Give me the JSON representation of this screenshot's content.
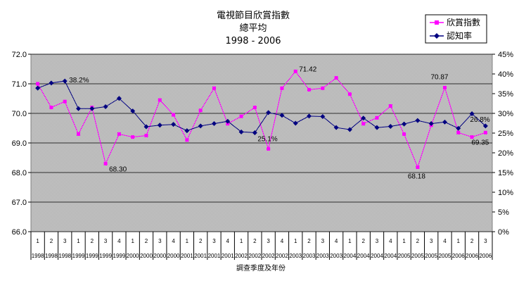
{
  "chart_data": {
    "type": "line",
    "title": [
      "電視節目欣賞指數",
      "總平均",
      "1998 - 2006"
    ],
    "xlabel": "調查季度及年份",
    "ylabel": "",
    "ylim": [
      66.0,
      72.0
    ],
    "y2lim": [
      0,
      45
    ],
    "yticks": [
      "66.0",
      "67.0",
      "68.0",
      "69.0",
      "70.0",
      "71.0",
      "72.0"
    ],
    "y2ticks": [
      "0%",
      "5%",
      "10%",
      "15%",
      "20%",
      "25%",
      "30%",
      "35%",
      "40%",
      "45%"
    ],
    "grid": true,
    "legend_position": "top-right",
    "quarters": [
      "1",
      "2",
      "3",
      "1",
      "2",
      "3",
      "4",
      "1",
      "2",
      "3",
      "4",
      "1",
      "2",
      "3",
      "4",
      "1",
      "2",
      "3",
      "4",
      "1",
      "2",
      "3",
      "4",
      "1",
      "2",
      "3",
      "4",
      "1",
      "2",
      "3",
      "4",
      "1",
      "2",
      "3"
    ],
    "years": [
      "1998",
      "1998",
      "1998",
      "1999",
      "1999",
      "1999",
      "1999",
      "2000",
      "2000",
      "2000",
      "2000",
      "2001",
      "2001",
      "2001",
      "2001",
      "2002",
      "2002",
      "2002",
      "2002",
      "2003",
      "2003",
      "2003",
      "2003",
      "2004",
      "2004",
      "2004",
      "2004",
      "2005",
      "2005",
      "2005",
      "2005",
      "2006",
      "2006",
      "2006"
    ],
    "series": [
      {
        "name": "欣賞指數",
        "axis": "left",
        "color": "#ff00ff",
        "marker": "square",
        "values": [
          71.0,
          70.2,
          70.4,
          69.3,
          70.2,
          68.3,
          69.3,
          69.2,
          69.25,
          70.45,
          69.95,
          69.1,
          70.1,
          70.85,
          69.65,
          69.9,
          70.2,
          68.8,
          70.85,
          71.42,
          70.8,
          70.85,
          71.2,
          70.65,
          69.65,
          69.85,
          70.25,
          69.3,
          68.18,
          69.6,
          70.87,
          69.35,
          69.2,
          69.35
        ]
      },
      {
        "name": "認知率",
        "axis": "right",
        "color": "#000080",
        "marker": "diamond",
        "values": [
          36.4,
          37.7,
          38.2,
          31.2,
          31.2,
          31.7,
          33.8,
          30.6,
          26.6,
          27.0,
          27.2,
          25.6,
          26.8,
          27.4,
          28.0,
          25.3,
          25.1,
          30.2,
          29.5,
          27.5,
          29.3,
          29.2,
          26.4,
          25.9,
          28.8,
          26.4,
          26.7,
          27.3,
          28.2,
          27.4,
          27.8,
          26.2,
          29.9,
          26.8
        ]
      }
    ],
    "annotations": [
      {
        "series": 1,
        "index": 2,
        "text": "38.2%"
      },
      {
        "series": 0,
        "index": 5,
        "text": "68.30"
      },
      {
        "series": 1,
        "index": 16,
        "text": "25.1%"
      },
      {
        "series": 0,
        "index": 19,
        "text": "71.42"
      },
      {
        "series": 0,
        "index": 28,
        "text": "68.18"
      },
      {
        "series": 0,
        "index": 30,
        "text": "70.87"
      },
      {
        "series": 1,
        "index": 33,
        "text": "26.8%"
      },
      {
        "series": 0,
        "index": 33,
        "text": "69.35"
      }
    ]
  }
}
